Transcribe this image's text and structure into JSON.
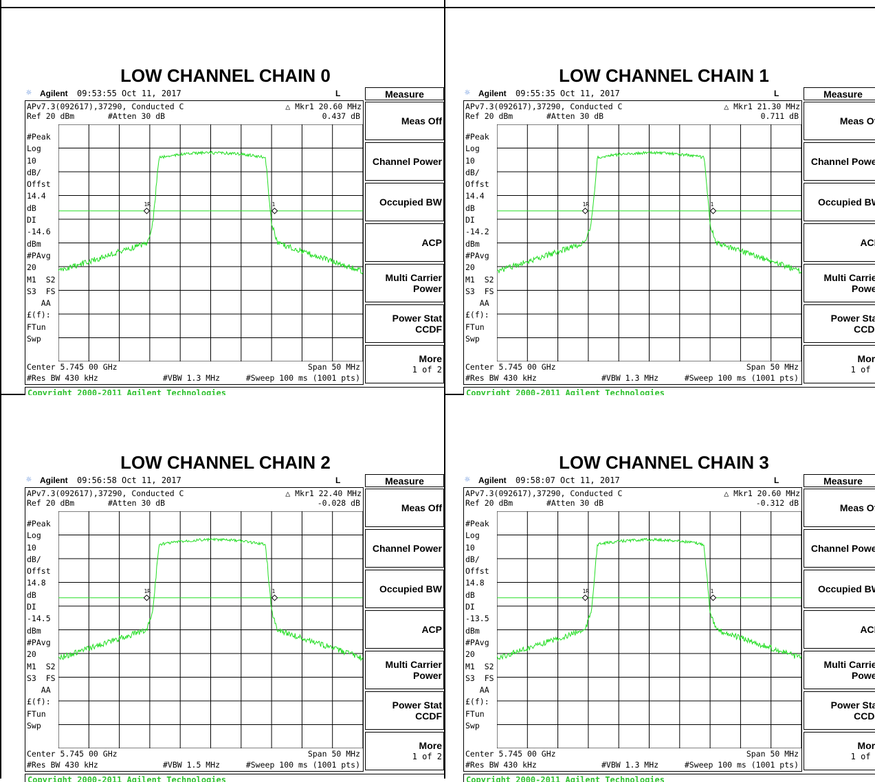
{
  "panels": [
    {
      "title": "LOW CHANNEL CHAIN 0",
      "brand": "Agilent",
      "timestamp": "09:53:55  Oct 11, 2017",
      "mode": "L",
      "config": "APv7.3(092617),37290, Conducted C",
      "marker_label": "△ Mkr1  20.60 MHz",
      "marker_value": "0.437 dB",
      "ref": "Ref 20 dBm",
      "atten": "#Atten 30 dB",
      "side_labels": [
        "#Peak",
        "Log",
        "10",
        "dB/",
        "Offst",
        "14.4",
        "dB",
        "DI",
        "-14.6",
        "dBm",
        "#PAvg",
        "20",
        "M1  S2",
        "S3  FS",
        "   AA",
        "£(f):",
        "FTun",
        "Swp"
      ],
      "center": "Center 5.745 00 GHz",
      "span": "Span 50 MHz",
      "rbw": "#Res BW 430 kHz",
      "vbw": "#VBW 1.3 MHz",
      "sweep": "#Sweep 100 ms (1001 pts)",
      "copyright": "Copyright 2000-2011 Agilent Technologies"
    },
    {
      "title": "LOW CHANNEL CHAIN 1",
      "brand": "Agilent",
      "timestamp": "09:55:35  Oct 11, 2017",
      "mode": "L",
      "config": "APv7.3(092617),37290, Conducted C",
      "marker_label": "△ Mkr1  21.30 MHz",
      "marker_value": "0.711 dB",
      "ref": "Ref 20 dBm",
      "atten": "#Atten 30 dB",
      "side_labels": [
        "#Peak",
        "Log",
        "10",
        "dB/",
        "Offst",
        "14.4",
        "dB",
        "DI",
        "-14.2",
        "dBm",
        "#PAvg",
        "20",
        "M1  S2",
        "S3  FS",
        "   AA",
        "£(f):",
        "FTun",
        "Swp"
      ],
      "center": "Center 5.745 00 GHz",
      "span": "Span 50 MHz",
      "rbw": "#Res BW 430 kHz",
      "vbw": "#VBW 1.3 MHz",
      "sweep": "#Sweep 100 ms (1001 pts)",
      "copyright": "Copyright 2000-2011 Agilent Technologies"
    },
    {
      "title": "LOW CHANNEL CHAIN 2",
      "brand": "Agilent",
      "timestamp": "09:56:58  Oct 11, 2017",
      "mode": "L",
      "config": "APv7.3(092617),37290, Conducted C",
      "marker_label": "△ Mkr1  22.40 MHz",
      "marker_value": "-0.028 dB",
      "ref": "Ref 20 dBm",
      "atten": "#Atten 30 dB",
      "side_labels": [
        "#Peak",
        "Log",
        "10",
        "dB/",
        "Offst",
        "14.8",
        "dB",
        "DI",
        "-14.5",
        "dBm",
        "#PAvg",
        "20",
        "M1  S2",
        "S3  FS",
        "   AA",
        "£(f):",
        "FTun",
        "Swp"
      ],
      "center": "Center 5.745 00 GHz",
      "span": "Span 50 MHz",
      "rbw": "#Res BW 430 kHz",
      "vbw": "#VBW 1.5 MHz",
      "sweep": "#Sweep 100 ms (1001 pts)",
      "copyright": "Copyright 2000-2011 Agilent Technologies"
    },
    {
      "title": "LOW CHANNEL CHAIN 3",
      "brand": "Agilent",
      "timestamp": "09:58:07  Oct 11, 2017",
      "mode": "L",
      "config": "APv7.3(092617),37290, Conducted C",
      "marker_label": "△ Mkr1  20.60 MHz",
      "marker_value": "-0.312 dB",
      "ref": "Ref 20 dBm",
      "atten": "#Atten 30 dB",
      "side_labels": [
        "#Peak",
        "Log",
        "10",
        "dB/",
        "Offst",
        "14.8",
        "dB",
        "DI",
        "-13.5",
        "dBm",
        "#PAvg",
        "20",
        "M1  S2",
        "S3  FS",
        "   AA",
        "£(f):",
        "FTun",
        "Swp"
      ],
      "center": "Center 5.745 00 GHz",
      "span": "Span 50 MHz",
      "rbw": "#Res BW 430 kHz",
      "vbw": "#VBW 1.3 MHz",
      "sweep": "#Sweep 100 ms (1001 pts)",
      "copyright": "Copyright 2000-2011 Agilent Technologies"
    }
  ],
  "menu": {
    "title": "Measure",
    "keys": [
      {
        "label": "Meas Off",
        "sub": ""
      },
      {
        "label": "Channel Power",
        "sub": ""
      },
      {
        "label": "Occupied BW",
        "sub": ""
      },
      {
        "label": "ACP",
        "sub": ""
      },
      {
        "label": "Multi Carrier|Power",
        "sub": ""
      },
      {
        "label": "Power Stat|CCDF",
        "sub": ""
      },
      {
        "label": "More",
        "sub": "1 of 2"
      }
    ]
  },
  "colors": {
    "trace": "#22dd22",
    "display_line": "#22dd22",
    "graticule": "#000000",
    "copyright_text": "#2fc12f",
    "sun_icon": "#4a7fd6"
  },
  "marker_text": {
    "reference": "1R",
    "delta": "1"
  }
}
